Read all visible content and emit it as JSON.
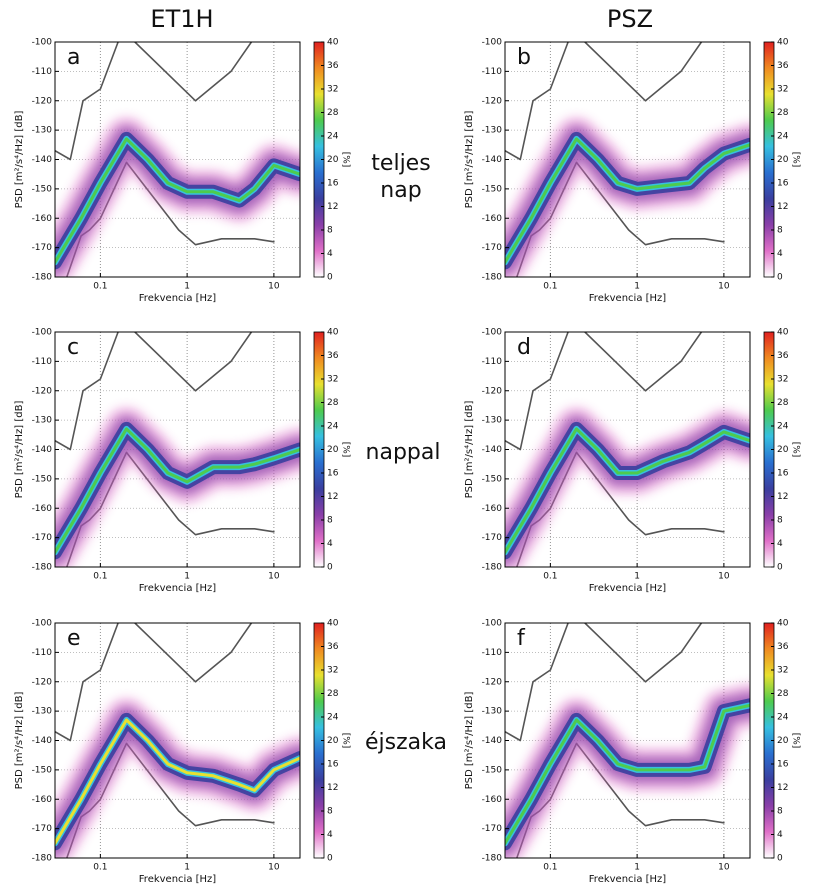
{
  "column_titles": [
    "ET1H",
    "PSZ"
  ],
  "row_labels": [
    [
      "teljes",
      "nap"
    ],
    [
      "nappal"
    ],
    [
      "éjszaka"
    ]
  ],
  "chart_data": [
    {
      "type": "psd",
      "label": "a",
      "xlabel": "Frekvencia [Hz]",
      "ylabel": "PSD [m²/s⁴/Hz] [dB]",
      "xlim": [
        0.03,
        20
      ],
      "xticks": [
        0.1,
        1,
        10
      ],
      "xscale": "log",
      "ylim": [
        -180,
        -100
      ],
      "yticks": [
        -180,
        -170,
        -160,
        -150,
        -140,
        -130,
        -120,
        -110,
        -100
      ],
      "grid": true,
      "colorbar": {
        "label": "[%]",
        "lim": [
          0,
          40
        ],
        "ticks": [
          0,
          4,
          8,
          12,
          16,
          20,
          24,
          28,
          32,
          36,
          40
        ],
        "colormap": [
          "#ffffff",
          "#e070c8",
          "#8a3fa8",
          "#3a3f9f",
          "#2a6fd0",
          "#36c0e0",
          "#4ecb4e",
          "#e8e030",
          "#f08a20",
          "#e02020"
        ]
      },
      "series": [
        {
          "style": "line",
          "color": "#555555",
          "x": [
            0.03,
            0.045,
            0.063,
            0.1,
            0.16,
            0.2,
            0.25,
            1.25,
            3.2,
            5.5
          ],
          "values": [
            -137,
            -140,
            -120,
            -116,
            -100,
            null,
            -100,
            -120,
            -110,
            -100
          ]
        },
        {
          "style": "line",
          "color": "#555555",
          "x": [
            0.041,
            0.06,
            0.075,
            0.1,
            0.2,
            0.8,
            1.25,
            2.5,
            6,
            10
          ],
          "values": [
            -180,
            -166,
            -164,
            -160,
            -141,
            -164,
            -169,
            -167,
            -167,
            -168
          ]
        },
        {
          "style": "density",
          "color": "#4ecb4e",
          "x": [
            0.03,
            0.06,
            0.1,
            0.2,
            0.35,
            0.6,
            1,
            2,
            4,
            6,
            10,
            20
          ],
          "values": [
            -175,
            -160,
            -148,
            -133,
            -140,
            -148,
            -151,
            -151,
            -154,
            -150,
            -142,
            -145
          ]
        }
      ]
    },
    {
      "type": "psd",
      "label": "b",
      "xlabel": "Frekvencia [Hz]",
      "ylabel": "PSD [m²/s⁴/Hz] [dB]",
      "xlim": [
        0.03,
        20
      ],
      "xticks": [
        0.1,
        1,
        10
      ],
      "xscale": "log",
      "ylim": [
        -180,
        -100
      ],
      "yticks": [
        -180,
        -170,
        -160,
        -150,
        -140,
        -130,
        -120,
        -110,
        -100
      ],
      "grid": true,
      "colorbar": {
        "label": "[%]",
        "lim": [
          0,
          40
        ],
        "ticks": [
          0,
          4,
          8,
          12,
          16,
          20,
          24,
          28,
          32,
          36,
          40
        ],
        "colormap": [
          "#ffffff",
          "#e070c8",
          "#8a3fa8",
          "#3a3f9f",
          "#2a6fd0",
          "#36c0e0",
          "#4ecb4e",
          "#e8e030",
          "#f08a20",
          "#e02020"
        ]
      },
      "series": [
        {
          "style": "line",
          "color": "#555555",
          "x": [
            0.03,
            0.045,
            0.063,
            0.1,
            0.16,
            0.2,
            0.25,
            1.25,
            3.2,
            5.5
          ],
          "values": [
            -137,
            -140,
            -120,
            -116,
            -100,
            null,
            -100,
            -120,
            -110,
            -100
          ]
        },
        {
          "style": "line",
          "color": "#555555",
          "x": [
            0.041,
            0.06,
            0.075,
            0.1,
            0.2,
            0.8,
            1.25,
            2.5,
            6,
            10
          ],
          "values": [
            -180,
            -166,
            -164,
            -160,
            -141,
            -164,
            -169,
            -167,
            -167,
            -168
          ]
        },
        {
          "style": "density",
          "color": "#4ecb4e",
          "x": [
            0.03,
            0.06,
            0.1,
            0.2,
            0.35,
            0.6,
            1,
            2,
            4,
            6,
            10,
            20
          ],
          "values": [
            -175,
            -160,
            -148,
            -133,
            -140,
            -148,
            -150,
            -149,
            -148,
            -143,
            -138,
            -135
          ]
        }
      ]
    },
    {
      "type": "psd",
      "label": "c",
      "xlabel": "Frekvencia [Hz]",
      "ylabel": "PSD [m²/s⁴/Hz] [dB]",
      "xlim": [
        0.03,
        20
      ],
      "xticks": [
        0.1,
        1,
        10
      ],
      "xscale": "log",
      "ylim": [
        -180,
        -100
      ],
      "yticks": [
        -180,
        -170,
        -160,
        -150,
        -140,
        -130,
        -120,
        -110,
        -100
      ],
      "grid": true,
      "colorbar": {
        "label": "[%]",
        "lim": [
          0,
          40
        ],
        "ticks": [
          0,
          4,
          8,
          12,
          16,
          20,
          24,
          28,
          32,
          36,
          40
        ],
        "colormap": [
          "#ffffff",
          "#e070c8",
          "#8a3fa8",
          "#3a3f9f",
          "#2a6fd0",
          "#36c0e0",
          "#4ecb4e",
          "#e8e030",
          "#f08a20",
          "#e02020"
        ]
      },
      "series": [
        {
          "style": "line",
          "color": "#555555",
          "x": [
            0.03,
            0.045,
            0.063,
            0.1,
            0.16,
            0.2,
            0.25,
            1.25,
            3.2,
            5.5
          ],
          "values": [
            -137,
            -140,
            -120,
            -116,
            -100,
            null,
            -100,
            -120,
            -110,
            -100
          ]
        },
        {
          "style": "line",
          "color": "#555555",
          "x": [
            0.041,
            0.06,
            0.075,
            0.1,
            0.2,
            0.8,
            1.25,
            2.5,
            6,
            10
          ],
          "values": [
            -180,
            -166,
            -164,
            -160,
            -141,
            -164,
            -169,
            -167,
            -167,
            -168
          ]
        },
        {
          "style": "density",
          "color": "#4ecb4e",
          "x": [
            0.03,
            0.06,
            0.1,
            0.2,
            0.35,
            0.6,
            1,
            2,
            4,
            6,
            10,
            20
          ],
          "values": [
            -175,
            -160,
            -148,
            -133,
            -140,
            -148,
            -151,
            -146,
            -146,
            -145,
            -143,
            -140
          ]
        }
      ]
    },
    {
      "type": "psd",
      "label": "d",
      "xlabel": "Frekvencia [Hz]",
      "ylabel": "PSD [m²/s⁴/Hz] [dB]",
      "xlim": [
        0.03,
        20
      ],
      "xticks": [
        0.1,
        1,
        10
      ],
      "xscale": "log",
      "ylim": [
        -180,
        -100
      ],
      "yticks": [
        -180,
        -170,
        -160,
        -150,
        -140,
        -130,
        -120,
        -110,
        -100
      ],
      "grid": true,
      "colorbar": {
        "label": "[%]",
        "lim": [
          0,
          40
        ],
        "ticks": [
          0,
          4,
          8,
          12,
          16,
          20,
          24,
          28,
          32,
          36,
          40
        ],
        "colormap": [
          "#ffffff",
          "#e070c8",
          "#8a3fa8",
          "#3a3f9f",
          "#2a6fd0",
          "#36c0e0",
          "#4ecb4e",
          "#e8e030",
          "#f08a20",
          "#e02020"
        ]
      },
      "series": [
        {
          "style": "line",
          "color": "#555555",
          "x": [
            0.03,
            0.045,
            0.063,
            0.1,
            0.16,
            0.2,
            0.25,
            1.25,
            3.2,
            5.5
          ],
          "values": [
            -137,
            -140,
            -120,
            -116,
            -100,
            null,
            -100,
            -120,
            -110,
            -100
          ]
        },
        {
          "style": "line",
          "color": "#555555",
          "x": [
            0.041,
            0.06,
            0.075,
            0.1,
            0.2,
            0.8,
            1.25,
            2.5,
            6,
            10
          ],
          "values": [
            -180,
            -166,
            -164,
            -160,
            -141,
            -164,
            -169,
            -167,
            -167,
            -168
          ]
        },
        {
          "style": "density",
          "color": "#4ecb4e",
          "x": [
            0.03,
            0.06,
            0.1,
            0.2,
            0.35,
            0.6,
            1,
            2,
            4,
            6,
            10,
            20
          ],
          "values": [
            -175,
            -160,
            -148,
            -133,
            -140,
            -148,
            -148,
            -144,
            -141,
            -138,
            -134,
            -137
          ]
        }
      ]
    },
    {
      "type": "psd",
      "label": "e",
      "xlabel": "Frekvencia [Hz]",
      "ylabel": "PSD [m²/s⁴/Hz] [dB]",
      "xlim": [
        0.03,
        20
      ],
      "xticks": [
        0.1,
        1,
        10
      ],
      "xscale": "log",
      "ylim": [
        -180,
        -100
      ],
      "yticks": [
        -180,
        -170,
        -160,
        -150,
        -140,
        -130,
        -120,
        -110,
        -100
      ],
      "grid": true,
      "colorbar": {
        "label": "[%]",
        "lim": [
          0,
          40
        ],
        "ticks": [
          0,
          4,
          8,
          12,
          16,
          20,
          24,
          28,
          32,
          36,
          40
        ],
        "colormap": [
          "#ffffff",
          "#e070c8",
          "#8a3fa8",
          "#3a3f9f",
          "#2a6fd0",
          "#36c0e0",
          "#4ecb4e",
          "#e8e030",
          "#f08a20",
          "#e02020"
        ]
      },
      "series": [
        {
          "style": "line",
          "color": "#555555",
          "x": [
            0.03,
            0.045,
            0.063,
            0.1,
            0.16,
            0.2,
            0.25,
            1.25,
            3.2,
            5.5
          ],
          "values": [
            -137,
            -140,
            -120,
            -116,
            -100,
            null,
            -100,
            -120,
            -110,
            -100
          ]
        },
        {
          "style": "line",
          "color": "#555555",
          "x": [
            0.041,
            0.06,
            0.075,
            0.1,
            0.2,
            0.8,
            1.25,
            2.5,
            6,
            10
          ],
          "values": [
            -180,
            -166,
            -164,
            -160,
            -141,
            -164,
            -169,
            -167,
            -167,
            -168
          ]
        },
        {
          "style": "density",
          "color": "#e8e030",
          "x": [
            0.03,
            0.06,
            0.1,
            0.2,
            0.35,
            0.6,
            1,
            2,
            4,
            6,
            10,
            20
          ],
          "values": [
            -175,
            -160,
            -148,
            -133,
            -140,
            -148,
            -151,
            -152,
            -155,
            -157,
            -150,
            -146
          ]
        }
      ]
    },
    {
      "type": "psd",
      "label": "f",
      "xlabel": "Frekvencia [Hz]",
      "ylabel": "PSD [m²/s⁴/Hz] [dB]",
      "xlim": [
        0.03,
        20
      ],
      "xticks": [
        0.1,
        1,
        10
      ],
      "xscale": "log",
      "ylim": [
        -180,
        -100
      ],
      "yticks": [
        -180,
        -170,
        -160,
        -150,
        -140,
        -130,
        -120,
        -110,
        -100
      ],
      "grid": true,
      "colorbar": {
        "label": "[%]",
        "lim": [
          0,
          40
        ],
        "ticks": [
          0,
          4,
          8,
          12,
          16,
          20,
          24,
          28,
          32,
          36,
          40
        ],
        "colormap": [
          "#ffffff",
          "#e070c8",
          "#8a3fa8",
          "#3a3f9f",
          "#2a6fd0",
          "#36c0e0",
          "#4ecb4e",
          "#e8e030",
          "#f08a20",
          "#e02020"
        ]
      },
      "series": [
        {
          "style": "line",
          "color": "#555555",
          "x": [
            0.03,
            0.045,
            0.063,
            0.1,
            0.16,
            0.2,
            0.25,
            1.25,
            3.2,
            5.5
          ],
          "values": [
            -137,
            -140,
            -120,
            -116,
            -100,
            null,
            -100,
            -120,
            -110,
            -100
          ]
        },
        {
          "style": "line",
          "color": "#555555",
          "x": [
            0.041,
            0.06,
            0.075,
            0.1,
            0.2,
            0.8,
            1.25,
            2.5,
            6,
            10
          ],
          "values": [
            -180,
            -166,
            -164,
            -160,
            -141,
            -164,
            -169,
            -167,
            -167,
            -168
          ]
        },
        {
          "style": "density",
          "color": "#4ecb4e",
          "x": [
            0.03,
            0.06,
            0.1,
            0.2,
            0.35,
            0.6,
            1,
            2,
            4,
            6,
            10,
            20
          ],
          "values": [
            -175,
            -160,
            -148,
            -133,
            -140,
            -148,
            -150,
            -150,
            -150,
            -149,
            -130,
            -128
          ]
        }
      ]
    }
  ]
}
